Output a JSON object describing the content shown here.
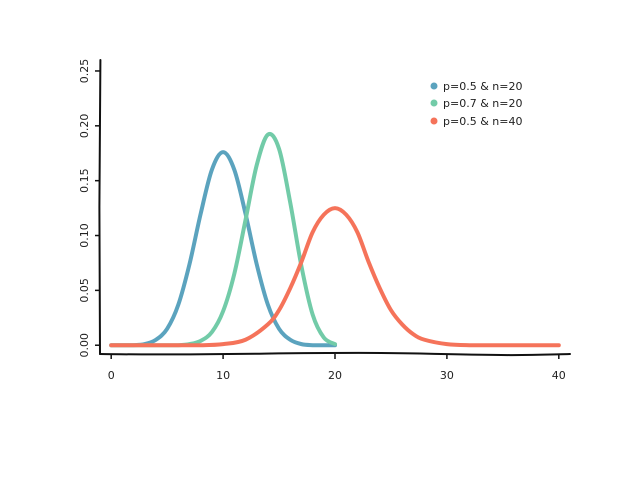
{
  "chart_data": {
    "type": "line",
    "title": "",
    "xlabel": "",
    "ylabel": "",
    "xlim": [
      -1,
      41
    ],
    "ylim": [
      -0.008,
      0.26
    ],
    "xticks": [
      0,
      10,
      20,
      30,
      40
    ],
    "xtick_labels": [
      "0",
      "10",
      "20",
      "30",
      "40"
    ],
    "yticks": [
      0.0,
      0.05,
      0.1,
      0.15,
      0.2,
      0.25
    ],
    "ytick_labels": [
      "0.00",
      "0.05",
      "0.10",
      "0.15",
      "0.20",
      "0.25"
    ],
    "grid": false,
    "legend_position": "top-right",
    "series": [
      {
        "name": "p=0.5 and n=20",
        "color": "#5ba3be",
        "x": [
          0,
          1,
          2,
          3,
          4,
          5,
          6,
          7,
          8,
          9,
          10,
          11,
          12,
          13,
          14,
          15,
          16,
          17,
          18,
          19,
          20
        ],
        "y": [
          0.0,
          0.0,
          0.0,
          0.001,
          0.005,
          0.015,
          0.037,
          0.074,
          0.12,
          0.16,
          0.176,
          0.16,
          0.12,
          0.074,
          0.037,
          0.015,
          0.005,
          0.001,
          0.0,
          0.0,
          0.0
        ]
      },
      {
        "name": "p=0.7 and n=20",
        "color": "#72cba8",
        "x": [
          0,
          1,
          2,
          3,
          4,
          5,
          6,
          7,
          8,
          9,
          10,
          11,
          12,
          13,
          14,
          15,
          16,
          17,
          18,
          19,
          20
        ],
        "y": [
          0.0,
          0.0,
          0.0,
          0.0,
          0.0,
          0.0,
          0.0,
          0.001,
          0.004,
          0.012,
          0.031,
          0.065,
          0.114,
          0.164,
          0.192,
          0.179,
          0.13,
          0.072,
          0.028,
          0.007,
          0.001
        ]
      },
      {
        "name": "p=0.5 and n=40",
        "color": "#f5735a",
        "x": [
          0,
          4,
          8,
          10,
          12,
          14,
          15,
          16,
          17,
          18,
          19,
          20,
          21,
          22,
          23,
          24,
          25,
          26,
          27,
          28,
          30,
          32,
          35,
          40
        ],
        "y": [
          0.0,
          0.0,
          0.0,
          0.001,
          0.005,
          0.019,
          0.032,
          0.052,
          0.076,
          0.103,
          0.119,
          0.125,
          0.119,
          0.103,
          0.076,
          0.052,
          0.032,
          0.019,
          0.01,
          0.005,
          0.001,
          0.0,
          0.0,
          0.0
        ]
      }
    ]
  },
  "legend": {
    "items": [
      {
        "label": "p=0.5 & n=20",
        "color": "#5ba3be"
      },
      {
        "label": "p=0.7 & n=20",
        "color": "#72cba8"
      },
      {
        "label": "p=0.5 & n=40",
        "color": "#f5735a"
      }
    ]
  }
}
